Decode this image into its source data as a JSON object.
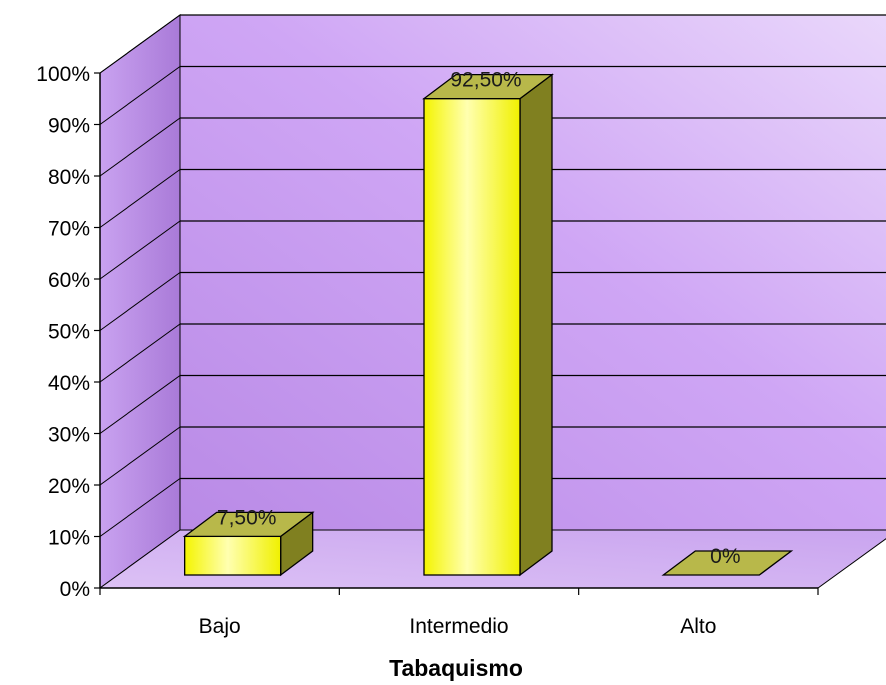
{
  "chart_data": {
    "type": "bar",
    "categories": [
      "Bajo",
      "Intermedio",
      "Alto"
    ],
    "values": [
      7.5,
      92.5,
      0
    ],
    "data_labels": [
      "7,50%",
      "92,50%",
      "0%"
    ],
    "xlabel": "Tabaquismo",
    "ylabel": "",
    "ylim": [
      0,
      100
    ],
    "y_ticks": [
      "0%",
      "10%",
      "20%",
      "30%",
      "40%",
      "50%",
      "60%",
      "70%",
      "80%",
      "90%",
      "100%"
    ],
    "grid": true,
    "three_d": true,
    "colors": {
      "bar_front": "#ffff22",
      "bar_side": "#808020",
      "bar_top": "#b8b84a",
      "wall": "#c79cf0",
      "floor": "#d7b8f3",
      "gridline": "#000000"
    }
  }
}
